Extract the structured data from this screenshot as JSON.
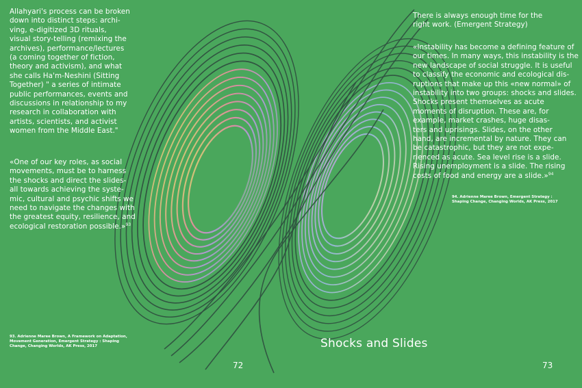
{
  "left_page": {
    "paragraph_1": "Allahyari's process can be broken\ndown into distinct steps: archi-\nving, e-digitized 3D rituals,\nvisual story-telling (remixing the\narchives), performance/lectures\n(a coming together of fiction,\ntheory and activism), and what\nshe calls Ha'm-Neshini (Sitting\nTogether) \" a series of intimate\npublic performances, events and\ndiscussions in relationship to my\nresearch in collaboration with\nartists, scientists, and activist\nwomen from the Middle East.\"",
    "paragraph_2": "«One of our key roles, as social\nmovements, must be to harness\nthe shocks and direct the slides-\nall towards achieving the syste-\nmic, cultural and psychic shifts we\nneed to navigate the changes with\nthe greatest equity, resilience, and\necological restoration possible.»",
    "paragraph_2_note": "93",
    "footnote": "93. Adrienne Maree Brown, A Framework on Adaptation,\nMovement Generation, Emergent Strategy : Shaping\nChange, Changing Worlds, AK Press, 2017",
    "page_number": "72"
  },
  "right_page": {
    "epigraph": "There is always enough time for the\nright work. (Emergent Strategy)",
    "quote": "«Instability has become a defining feature of\nour times. In many ways, this instability is the\nnew landscape of social struggle. It is useful\nto classify the economic and ecological dis-\nruptions that make up this «new normal» of\ninstability into two groups: shocks and slides.\nShocks present themselves as acute\nmoments of disruption. These are, for\nexample, market crashes, huge disas-\nters and uprisings. Slides, on the other\nhand, are incremental by nature. They can\nbe catastrophic, but they are not expe-\nrienced as acute. Sea level rise is a slide.\nRising unemployment is a slide. The rising\ncosts of food and energy are a slide.»",
    "quote_note": "94",
    "footnote": "94. Adrienne Maree Brown, Emergent Strategy :\nShaping Change, Changing Worlds, AK Press, 2017",
    "chapter_title": "Shocks and Slides",
    "page_number": "73"
  },
  "colors": {
    "background": "#4aa75c",
    "text": "#ffffff",
    "attractor_outer": "#2f4f3f",
    "attractor_inner": "#c7b8d6"
  },
  "illustration": {
    "icon": "lorenz-attractor-illustration"
  }
}
